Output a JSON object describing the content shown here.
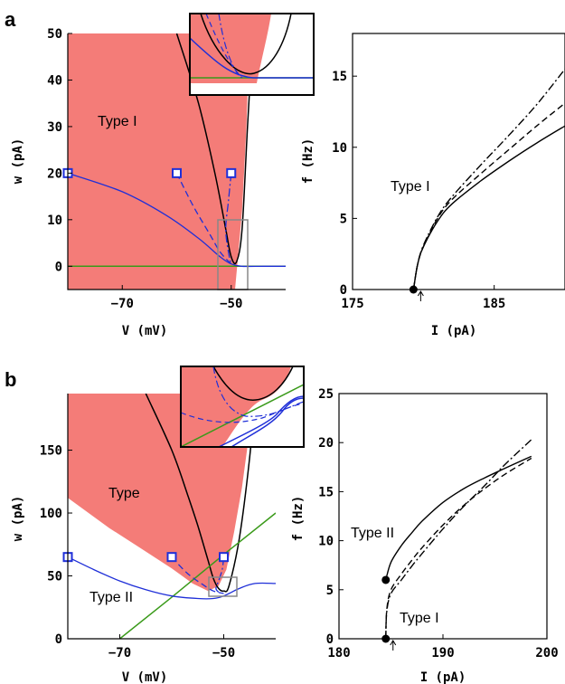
{
  "panels": [
    {
      "label": "a"
    },
    {
      "label": "b"
    }
  ],
  "colors": {
    "region_fill": "#f47c78",
    "trajectory": "#1f2fd8",
    "nullcline_w": "#3a9a1a",
    "nullcline_v": "#000000",
    "zoom_box": "#888888"
  },
  "chart_data": [
    {
      "type": "line",
      "panel": "a-left",
      "xlabel": "V (mV)",
      "ylabel": "w (pA)",
      "xlim": [
        -80,
        -40
      ],
      "ylim": [
        -5,
        50
      ],
      "xticks": [
        -70,
        -50
      ],
      "yticks": [
        0,
        10,
        20,
        30,
        40,
        50
      ],
      "annotations": [
        "Type I"
      ],
      "series": [
        {
          "role": "V-nullcline",
          "x": [
            -60,
            -56,
            -53,
            -51,
            -50,
            -49,
            -48,
            -47,
            -46
          ],
          "y": [
            50,
            35,
            20,
            8,
            2,
            1,
            8,
            30,
            50
          ]
        },
        {
          "role": "w-nullcline",
          "x": [
            -80,
            -40
          ],
          "y": [
            0,
            0
          ]
        },
        {
          "role": "trajectory-solid",
          "x": [
            -80,
            -70,
            -62,
            -56,
            -52,
            -50,
            -48,
            -44,
            -40
          ],
          "y": [
            20,
            16,
            11,
            6,
            2,
            0.5,
            0,
            0,
            0
          ]
        },
        {
          "role": "trajectory-dashed",
          "x": [
            -60,
            -57,
            -54,
            -52,
            -50
          ],
          "y": [
            20,
            13,
            7,
            3,
            0.5
          ]
        },
        {
          "role": "trajectory-dashdot",
          "x": [
            -50,
            -50.5,
            -51,
            -50.5,
            -50
          ],
          "y": [
            20,
            14,
            8,
            3,
            0.5
          ]
        }
      ],
      "markers_start": [
        {
          "x": -80,
          "y": 20
        },
        {
          "x": -60,
          "y": 20
        },
        {
          "x": -50,
          "y": 20
        }
      ]
    },
    {
      "type": "line",
      "panel": "a-right",
      "xlabel": "I (pA)",
      "ylabel": "f (Hz)",
      "xlim": [
        175,
        190
      ],
      "ylim": [
        0,
        18
      ],
      "xticks": [
        175,
        185
      ],
      "yticks": [
        0,
        5,
        10,
        15
      ],
      "annotations": [
        "Type I"
      ],
      "onset_marker": {
        "x": 179.3,
        "y": 0
      },
      "series": [
        {
          "style": "solid",
          "x": [
            179.3,
            179.6,
            180,
            181,
            182,
            184,
            186,
            188,
            190
          ],
          "y": [
            0,
            1.8,
            3,
            4.8,
            6,
            7.6,
            9,
            10.3,
            11.5
          ]
        },
        {
          "style": "dashed",
          "x": [
            179.3,
            179.6,
            180,
            181,
            182,
            184,
            186,
            188,
            190
          ],
          "y": [
            0,
            1.8,
            3,
            5,
            6.3,
            8.1,
            9.8,
            11.5,
            13.1
          ]
        },
        {
          "style": "dashdot",
          "x": [
            179.3,
            179.6,
            180,
            181,
            182,
            184,
            186,
            188,
            190
          ],
          "y": [
            0,
            1.8,
            3.1,
            5.1,
            6.5,
            8.7,
            10.8,
            13,
            15.5
          ]
        }
      ]
    },
    {
      "type": "line",
      "panel": "b-left",
      "xlabel": "V (mV)",
      "ylabel": "w (pA)",
      "xlim": [
        -80,
        -40
      ],
      "ylim": [
        0,
        195
      ],
      "xticks": [
        -70,
        -50
      ],
      "yticks": [
        0,
        50,
        100,
        150
      ],
      "annotations": [
        "Type",
        "Type II"
      ],
      "series": [
        {
          "role": "V-nullcline",
          "x": [
            -65,
            -60,
            -57,
            -55,
            -53,
            -52,
            -51,
            -50,
            -49,
            -47,
            -45,
            -44
          ],
          "y": [
            195,
            150,
            115,
            90,
            62,
            48,
            40,
            38,
            42,
            80,
            145,
            195
          ]
        },
        {
          "role": "w-nullcline",
          "x": [
            -70,
            -60,
            -50,
            -40
          ],
          "y": [
            0,
            33,
            67,
            100
          ]
        },
        {
          "role": "trajectory-solid",
          "x": [
            -80,
            -75,
            -70,
            -65,
            -60,
            -55,
            -52,
            -50,
            -47,
            -44,
            -40
          ],
          "y": [
            65,
            55,
            46,
            39,
            34,
            32,
            32,
            34,
            40,
            44,
            44
          ]
        },
        {
          "role": "trajectory-dashed",
          "x": [
            -60,
            -57,
            -54,
            -52,
            -50
          ],
          "y": [
            65,
            52,
            43,
            38,
            36
          ]
        },
        {
          "role": "trajectory-dashdot",
          "x": [
            -50,
            -50.3,
            -51,
            -51.5,
            -51
          ],
          "y": [
            65,
            55,
            46,
            40,
            37
          ]
        }
      ],
      "markers_start": [
        {
          "x": -80,
          "y": 65
        },
        {
          "x": -60,
          "y": 65
        },
        {
          "x": -50,
          "y": 65
        }
      ]
    },
    {
      "type": "line",
      "panel": "b-right",
      "xlabel": "I (pA)",
      "ylabel": "f (Hz)",
      "xlim": [
        180,
        200
      ],
      "ylim": [
        0,
        25
      ],
      "xticks": [
        180,
        190,
        200
      ],
      "yticks": [
        0,
        5,
        10,
        15,
        20,
        25
      ],
      "annotations": [
        "Type II",
        "Type I"
      ],
      "onset_markers": [
        {
          "x": 184.5,
          "y": 0
        },
        {
          "x": 184.5,
          "y": 6
        }
      ],
      "series": [
        {
          "style": "solid",
          "x": [
            184.5,
            185,
            186,
            187,
            188,
            190,
            192,
            194,
            196,
            198.5
          ],
          "y": [
            6,
            7.8,
            9.5,
            10.8,
            12,
            13.9,
            15.3,
            16.4,
            17.4,
            18.6
          ]
        },
        {
          "style": "dashed",
          "x": [
            184.5,
            184.6,
            185,
            186,
            187,
            188,
            190,
            192,
            194,
            196,
            198.5
          ],
          "y": [
            0,
            3,
            5,
            6.6,
            8,
            9.3,
            11.6,
            13.6,
            15.3,
            16.8,
            18.4
          ]
        },
        {
          "style": "dashdot",
          "x": [
            184.5,
            184.6,
            185,
            186,
            187,
            188,
            190,
            192,
            194,
            196,
            198.5
          ],
          "y": [
            0,
            2.8,
            4.6,
            6,
            7.4,
            8.7,
            11.2,
            13.5,
            15.6,
            17.8,
            20.3
          ]
        }
      ]
    }
  ]
}
